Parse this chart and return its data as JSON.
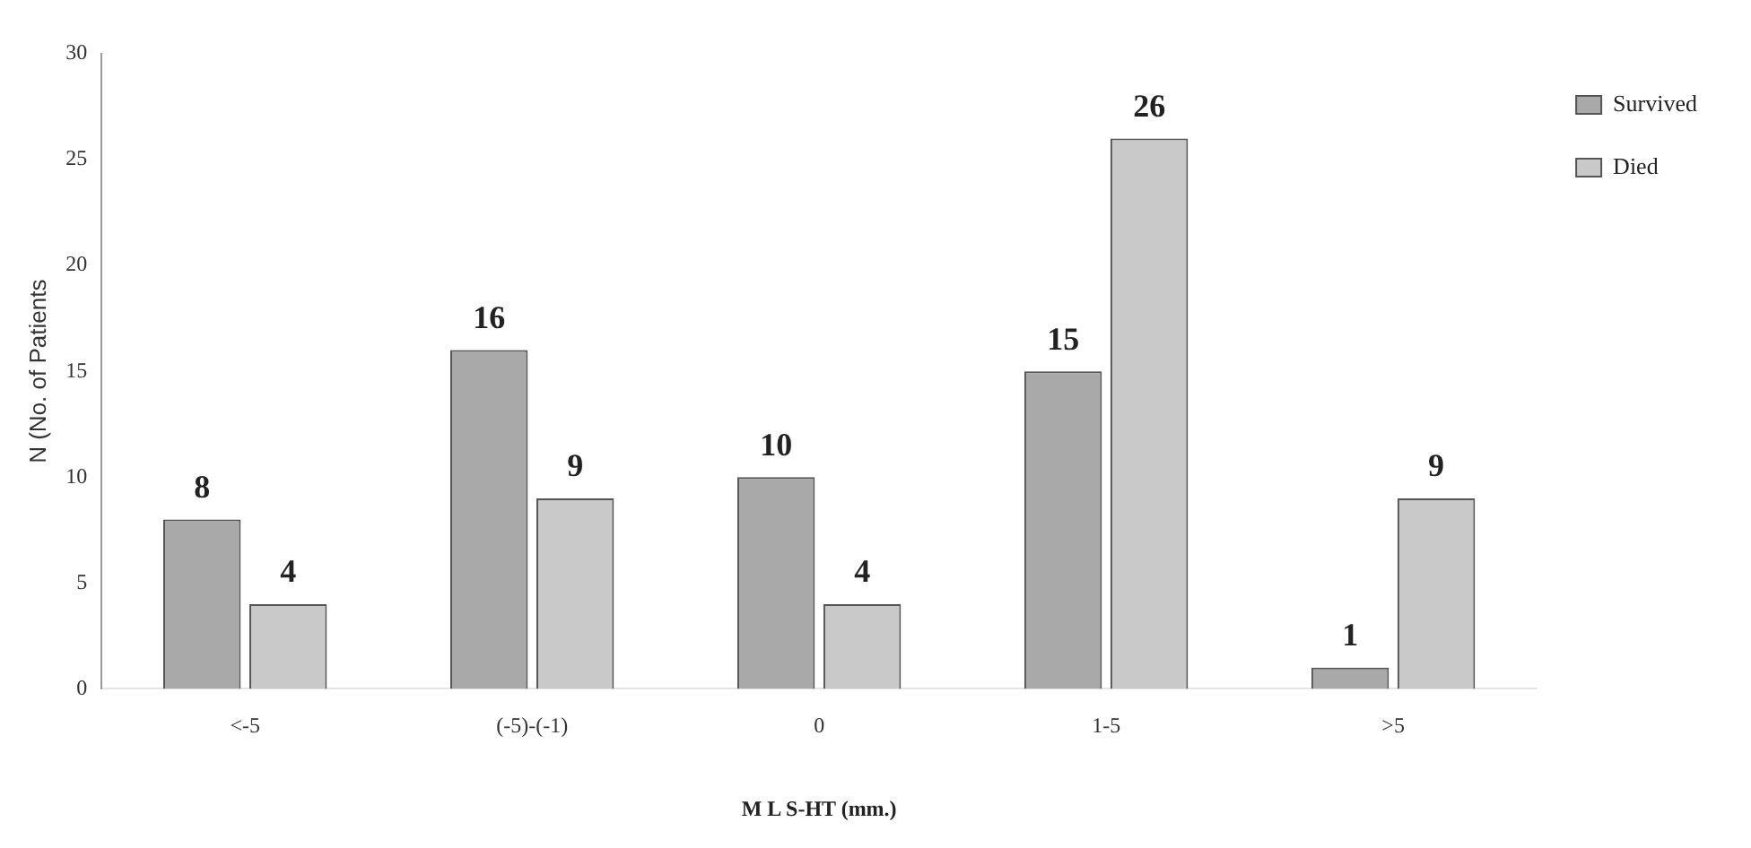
{
  "chart_data": {
    "type": "bar",
    "xlabel": "M L S-HT (mm.)",
    "ylabel": "N (No. of Patients",
    "categories": [
      "<-5",
      "(-5)-(-1)",
      "0",
      "1-5",
      ">5"
    ],
    "series": [
      {
        "name": "Survived",
        "color": "#a9a9a9",
        "values": [
          8,
          16,
          10,
          15,
          1
        ]
      },
      {
        "name": "Died",
        "color": "#c9c9c9",
        "values": [
          4,
          9,
          4,
          26,
          9
        ]
      }
    ],
    "ylim": [
      0,
      30
    ],
    "yticks": [
      0,
      5,
      10,
      15,
      20,
      25,
      30
    ],
    "grid": false,
    "legend": "top right",
    "data_labels": true
  }
}
